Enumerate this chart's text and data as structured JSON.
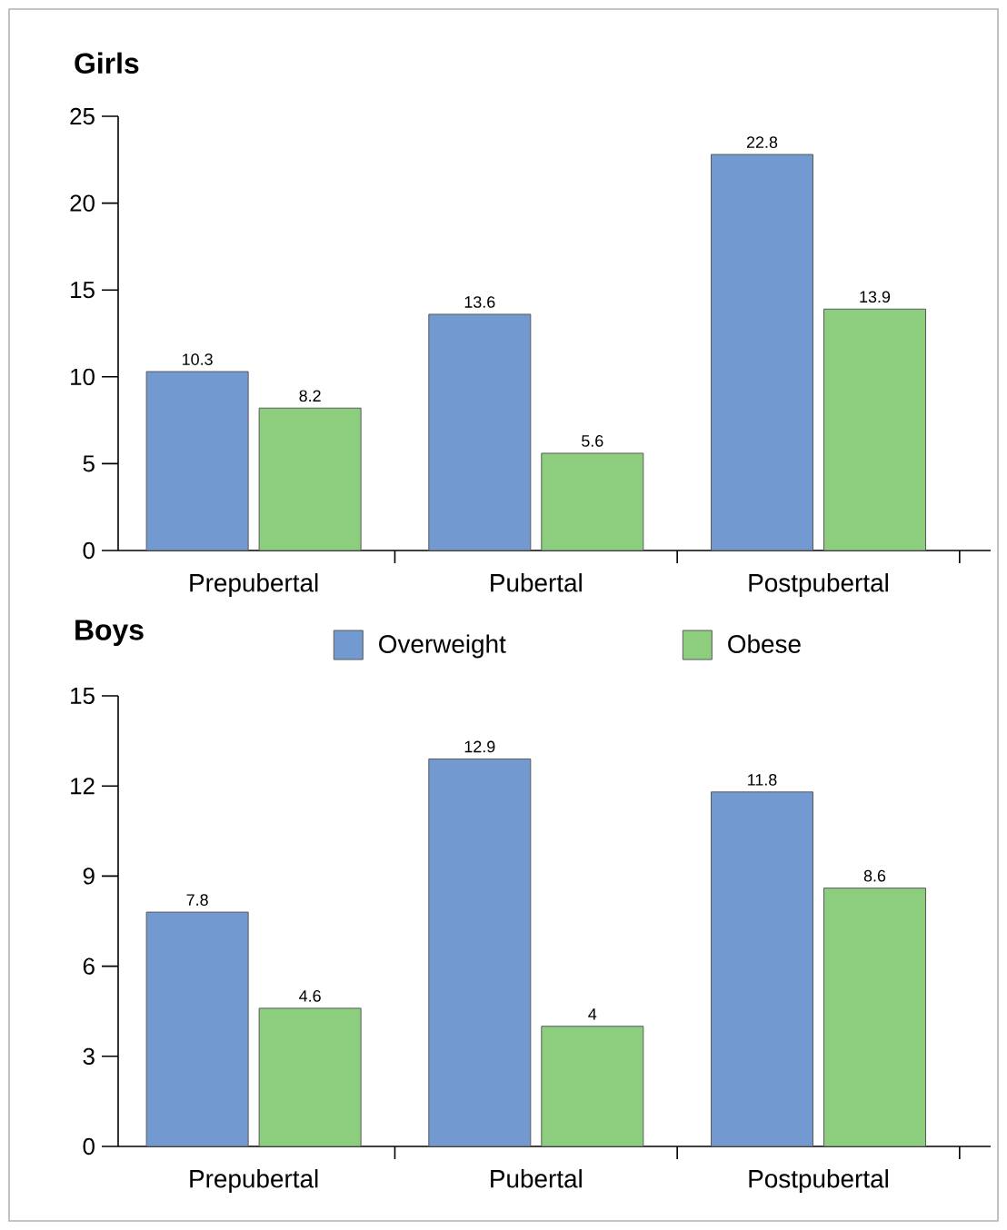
{
  "chart_data": [
    {
      "type": "bar",
      "title": "Girls",
      "categories": [
        "Prepubertal",
        "Pubertal",
        "Postpubertal"
      ],
      "series": [
        {
          "color": "#7399d1",
          "values": [
            10.3,
            13.6,
            22.8
          ]
        },
        {
          "color": "#8dcd7e",
          "values": [
            8.2,
            5.6,
            13.9
          ]
        }
      ],
      "ylim": [
        0,
        25
      ],
      "yticks": [
        0,
        5,
        10,
        15,
        20,
        25
      ],
      "data_labels": true
    },
    {
      "type": "bar",
      "title": "Boys",
      "categories": [
        "Prepubertal",
        "Pubertal",
        "Postpubertal"
      ],
      "series": [
        {
          "name": "Overweight",
          "color": "#7399d1",
          "values": [
            7.8,
            12.9,
            11.8
          ]
        },
        {
          "name": "Obese",
          "color": "#8dcd7e",
          "values": [
            4.6,
            4,
            8.6
          ]
        }
      ],
      "ylim": [
        0,
        15
      ],
      "yticks": [
        0,
        3,
        6,
        9,
        12,
        15
      ],
      "data_labels": true,
      "legend": "top"
    }
  ]
}
